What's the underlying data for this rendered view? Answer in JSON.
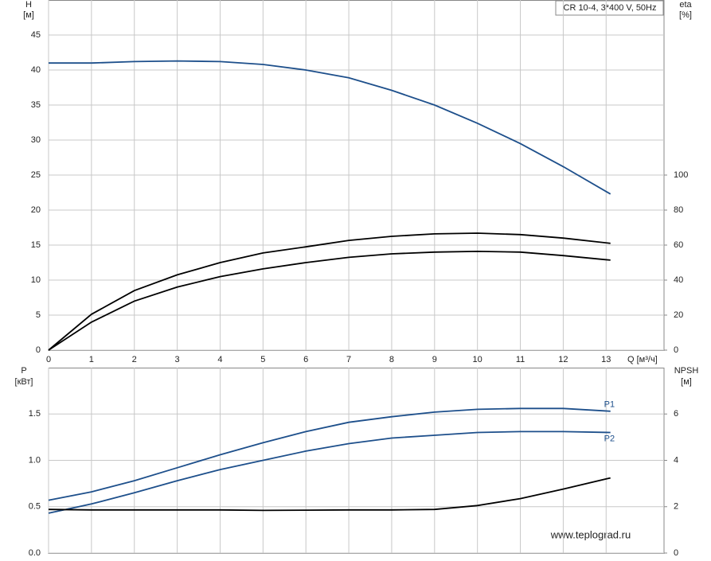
{
  "chart_data": [
    {
      "type": "line",
      "title": "CR 10-4, 3*400 V, 50Hz",
      "y_label": "H",
      "y_unit": "[м]",
      "y2_label": "eta",
      "y2_unit": "[%]",
      "x_label": "Q [м³/ч]",
      "x": [
        0,
        1,
        2,
        3,
        4,
        5,
        6,
        7,
        8,
        9,
        10,
        11,
        12,
        13.1
      ],
      "xlim": [
        0,
        14.35
      ],
      "xticks": [
        0,
        1,
        2,
        3,
        4,
        5,
        6,
        7,
        8,
        9,
        10,
        11,
        12,
        13
      ],
      "ylim": [
        0,
        50
      ],
      "yticks": [
        0,
        5,
        10,
        15,
        20,
        25,
        30,
        35,
        40,
        45
      ],
      "y2lim": [
        0,
        200
      ],
      "y2ticks": [
        0,
        20,
        40,
        60,
        80,
        100
      ],
      "grid": true,
      "series": [
        {
          "color": "#1d4f8b",
          "values": [
            41,
            41,
            41.2,
            41.3,
            41.2,
            40.8,
            40.0,
            38.9,
            37.1,
            35,
            32.4,
            29.5,
            26.2,
            22.3
          ]
        },
        {
          "color": "#000000",
          "axis": "y2",
          "values": [
            0,
            20.5,
            34,
            43,
            50,
            55.5,
            59,
            62.7,
            65,
            66.4,
            66.8,
            66,
            64,
            61
          ]
        },
        {
          "color": "#000000",
          "axis": "y2",
          "values": [
            0,
            16,
            28,
            36,
            42,
            46.4,
            50,
            53,
            55,
            56,
            56.4,
            56,
            54,
            51.4
          ]
        }
      ]
    },
    {
      "type": "line",
      "y_label": "P",
      "y_unit": "[кВт]",
      "y2_label": "NPSH",
      "y2_unit": "[м]",
      "annotation": "www.teplograd.ru",
      "x": [
        0,
        1,
        2,
        3,
        4,
        5,
        6,
        7,
        8,
        9,
        10,
        11,
        12,
        13.1
      ],
      "xlim": [
        0,
        14.35
      ],
      "ylim": [
        0,
        2
      ],
      "yticks": [
        {
          "value": 0,
          "label": "0.0"
        },
        0.5,
        {
          "value": 1,
          "label": "1.0"
        },
        1.5
      ],
      "y2lim": [
        0,
        8
      ],
      "y2ticks": [
        0,
        2,
        4,
        6
      ],
      "grid": true,
      "series": [
        {
          "name": "P1",
          "color": "#1d4f8b",
          "values": [
            0.57,
            0.66,
            0.78,
            0.92,
            1.06,
            1.19,
            1.31,
            1.41,
            1.47,
            1.52,
            1.55,
            1.56,
            1.56,
            1.53
          ]
        },
        {
          "name": "P2",
          "color": "#1d4f8b",
          "values": [
            0.43,
            0.53,
            0.65,
            0.78,
            0.9,
            1.0,
            1.1,
            1.18,
            1.24,
            1.27,
            1.3,
            1.31,
            1.31,
            1.3
          ]
        },
        {
          "color": "#000000",
          "axis": "y2",
          "values": [
            1.88,
            1.86,
            1.86,
            1.86,
            1.86,
            1.84,
            1.85,
            1.86,
            1.86,
            1.88,
            2.05,
            2.35,
            2.76,
            3.24
          ]
        }
      ]
    }
  ]
}
